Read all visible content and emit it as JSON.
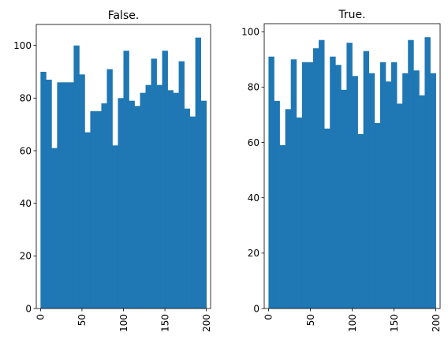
{
  "chart_data": [
    {
      "type": "bar",
      "title": "False.",
      "xlabel": "",
      "ylabel": "",
      "x_range": [
        -5.1,
        205.1
      ],
      "ylim": [
        0,
        108
      ],
      "xticks": [
        0,
        50,
        100,
        150,
        200
      ],
      "yticks": [
        0,
        20,
        40,
        60,
        80,
        100
      ],
      "bin_edges": [
        0,
        6.667,
        13.333,
        20,
        26.667,
        33.333,
        40,
        46.667,
        53.333,
        60,
        66.667,
        73.333,
        80,
        86.667,
        93.333,
        100,
        106.667,
        113.333,
        120,
        126.667,
        133.333,
        140,
        146.667,
        153.333,
        160,
        166.667,
        173.333,
        180,
        186.667,
        193.333,
        200
      ],
      "values": [
        90,
        87,
        61,
        86,
        86,
        86,
        100,
        89,
        67,
        75,
        75,
        78,
        91,
        62,
        80,
        98,
        79,
        77,
        82,
        85,
        95,
        85,
        98,
        83,
        82,
        94,
        76,
        73,
        103,
        79
      ],
      "color": "#1f77b4",
      "grid": false
    },
    {
      "type": "bar",
      "title": "True.",
      "xlabel": "",
      "ylabel": "",
      "x_range": [
        -5.1,
        205.1
      ],
      "ylim": [
        0,
        102.9
      ],
      "xticks": [
        0,
        50,
        100,
        150,
        200
      ],
      "yticks": [
        0,
        20,
        40,
        60,
        80,
        100
      ],
      "bin_edges": [
        0,
        6.667,
        13.333,
        20,
        26.667,
        33.333,
        40,
        46.667,
        53.333,
        60,
        66.667,
        73.333,
        80,
        86.667,
        93.333,
        100,
        106.667,
        113.333,
        120,
        126.667,
        133.333,
        140,
        146.667,
        153.333,
        160,
        166.667,
        173.333,
        180,
        186.667,
        193.333,
        200
      ],
      "values": [
        91,
        75,
        59,
        72,
        90,
        69,
        89,
        89,
        94,
        97,
        65,
        91,
        88,
        79,
        96,
        84,
        63,
        93,
        85,
        67,
        89,
        82,
        89,
        74,
        85,
        97,
        86,
        77,
        98,
        85
      ],
      "color": "#1f77b4",
      "grid": false
    }
  ]
}
